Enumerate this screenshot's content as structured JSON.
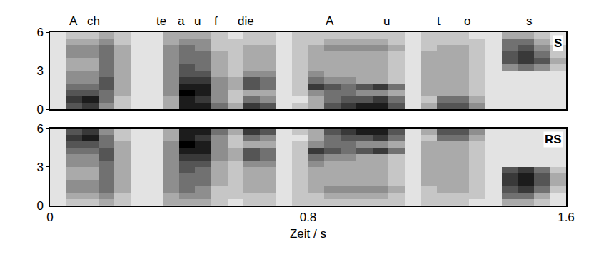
{
  "chart_data": [
    {
      "type": "heatmap",
      "panel": "S",
      "color": "gray",
      "tick_labels": "y",
      "x": [
        0.025,
        0.075,
        0.125,
        0.175,
        0.225,
        0.275,
        0.325,
        0.375,
        0.425,
        0.475,
        0.525,
        0.575,
        0.625,
        0.675,
        0.725,
        0.775,
        0.825,
        0.875,
        0.925,
        0.975,
        1.025,
        1.075,
        1.125,
        1.175,
        1.225,
        1.275,
        1.325,
        1.375,
        1.425,
        1.475,
        1.525,
        1.575
      ],
      "y": [
        0.25,
        0.75,
        1.25,
        1.75,
        2.25,
        2.75,
        3.25,
        3.75,
        4.25,
        4.75,
        5.25,
        5.75
      ],
      "cells": [
        [
          1,
          6,
          7,
          4,
          2,
          1,
          1,
          3,
          8,
          8,
          5,
          3,
          7,
          6,
          1,
          2,
          3,
          6,
          7,
          8,
          8,
          6,
          1,
          3,
          6,
          6,
          4,
          1,
          1,
          1,
          1,
          1
        ],
        [
          1,
          7,
          8,
          5,
          2,
          1,
          1,
          3,
          8,
          7,
          4,
          2,
          5,
          4,
          1,
          1,
          3,
          5,
          6,
          6,
          7,
          5,
          1,
          2,
          5,
          5,
          3,
          1,
          1,
          1,
          1,
          1
        ],
        [
          1,
          6,
          6,
          5,
          3,
          1,
          1,
          4,
          9,
          8,
          4,
          2,
          3,
          3,
          1,
          2,
          4,
          5,
          5,
          4,
          4,
          3,
          1,
          3,
          3,
          3,
          2,
          1,
          1,
          1,
          1,
          1
        ],
        [
          1,
          5,
          5,
          6,
          3,
          1,
          1,
          4,
          8,
          8,
          4,
          3,
          6,
          5,
          1,
          2,
          7,
          6,
          5,
          6,
          7,
          5,
          1,
          3,
          3,
          3,
          2,
          1,
          1,
          1,
          1,
          1
        ],
        [
          1,
          4,
          4,
          6,
          3,
          1,
          1,
          4,
          7,
          7,
          4,
          3,
          6,
          5,
          1,
          2,
          5,
          4,
          4,
          3,
          3,
          2,
          1,
          3,
          3,
          3,
          2,
          1,
          1,
          1,
          1,
          1
        ],
        [
          1,
          4,
          4,
          5,
          3,
          1,
          1,
          4,
          6,
          6,
          3,
          2,
          4,
          4,
          1,
          2,
          4,
          3,
          3,
          3,
          3,
          2,
          1,
          3,
          3,
          3,
          2,
          1,
          1,
          1,
          1,
          1
        ],
        [
          1,
          3,
          3,
          5,
          3,
          1,
          1,
          4,
          6,
          5,
          3,
          2,
          3,
          3,
          1,
          2,
          3,
          3,
          3,
          3,
          3,
          2,
          1,
          3,
          3,
          3,
          2,
          1,
          4,
          5,
          4,
          2
        ],
        [
          1,
          3,
          3,
          5,
          3,
          1,
          1,
          4,
          5,
          5,
          3,
          2,
          3,
          3,
          1,
          2,
          3,
          3,
          3,
          3,
          3,
          2,
          1,
          3,
          3,
          3,
          2,
          1,
          6,
          7,
          6,
          3
        ],
        [
          1,
          4,
          4,
          5,
          3,
          1,
          1,
          4,
          5,
          5,
          3,
          2,
          3,
          3,
          1,
          2,
          3,
          3,
          3,
          3,
          3,
          2,
          1,
          3,
          3,
          3,
          2,
          1,
          6,
          7,
          5,
          2
        ],
        [
          1,
          4,
          4,
          5,
          3,
          1,
          1,
          4,
          5,
          4,
          2,
          2,
          3,
          3,
          1,
          2,
          3,
          4,
          4,
          4,
          4,
          3,
          1,
          2,
          3,
          3,
          2,
          1,
          5,
          6,
          4,
          2
        ],
        [
          1,
          3,
          3,
          4,
          2,
          1,
          1,
          3,
          4,
          4,
          2,
          2,
          2,
          2,
          1,
          2,
          2,
          3,
          3,
          3,
          3,
          2,
          1,
          2,
          2,
          2,
          2,
          1,
          5,
          5,
          3,
          1
        ],
        [
          1,
          2,
          2,
          3,
          2,
          1,
          1,
          3,
          3,
          3,
          2,
          1,
          2,
          2,
          1,
          2,
          2,
          2,
          2,
          2,
          2,
          2,
          1,
          2,
          2,
          2,
          1,
          1,
          3,
          3,
          2,
          1
        ]
      ],
      "zlim": [
        0,
        9
      ],
      "xlim": [
        0,
        1.6
      ],
      "xticks": [
        0,
        0.8,
        1.6
      ],
      "ylim": [
        0,
        6
      ],
      "yticks": [
        0,
        3,
        6
      ],
      "annotations": [
        {
          "x": 0.073,
          "text": "A"
        },
        {
          "x": 0.135,
          "text": "ch"
        },
        {
          "x": 0.345,
          "text": "te"
        },
        {
          "x": 0.407,
          "text": "a"
        },
        {
          "x": 0.458,
          "text": "u"
        },
        {
          "x": 0.515,
          "text": "f"
        },
        {
          "x": 0.608,
          "text": "die"
        },
        {
          "x": 0.867,
          "text": "A"
        },
        {
          "x": 1.044,
          "text": "u"
        },
        {
          "x": 1.206,
          "text": "t"
        },
        {
          "x": 1.294,
          "text": "o"
        },
        {
          "x": 1.487,
          "text": "s"
        }
      ]
    },
    {
      "type": "heatmap",
      "panel": "RS",
      "color": "gray",
      "x_label": "Zeit / s",
      "x": [
        0.025,
        0.075,
        0.125,
        0.175,
        0.225,
        0.275,
        0.325,
        0.375,
        0.425,
        0.475,
        0.525,
        0.575,
        0.625,
        0.675,
        0.725,
        0.775,
        0.825,
        0.875,
        0.925,
        0.975,
        1.025,
        1.075,
        1.125,
        1.175,
        1.225,
        1.275,
        1.325,
        1.375,
        1.425,
        1.475,
        1.525,
        1.575
      ],
      "y": [
        0.25,
        0.75,
        1.25,
        1.75,
        2.25,
        2.75,
        3.25,
        3.75,
        4.25,
        4.75,
        5.25,
        5.75
      ],
      "cells": [
        [
          1,
          2,
          2,
          3,
          2,
          1,
          1,
          3,
          3,
          3,
          2,
          1,
          2,
          2,
          1,
          2,
          2,
          2,
          2,
          2,
          2,
          2,
          1,
          2,
          2,
          2,
          1,
          1,
          3,
          3,
          2,
          1
        ],
        [
          1,
          3,
          3,
          4,
          2,
          1,
          1,
          3,
          4,
          4,
          2,
          2,
          2,
          2,
          1,
          2,
          2,
          3,
          3,
          3,
          3,
          2,
          1,
          2,
          2,
          2,
          2,
          1,
          5,
          5,
          3,
          1
        ],
        [
          1,
          4,
          4,
          5,
          3,
          1,
          1,
          4,
          5,
          4,
          2,
          2,
          3,
          3,
          1,
          2,
          3,
          4,
          4,
          4,
          4,
          3,
          1,
          2,
          3,
          3,
          2,
          1,
          6,
          7,
          5,
          2
        ],
        [
          1,
          4,
          4,
          5,
          3,
          1,
          1,
          4,
          5,
          5,
          3,
          2,
          3,
          3,
          1,
          2,
          3,
          3,
          3,
          3,
          3,
          2,
          1,
          3,
          3,
          3,
          2,
          1,
          7,
          8,
          6,
          3
        ],
        [
          1,
          3,
          3,
          5,
          3,
          1,
          1,
          4,
          5,
          5,
          3,
          2,
          3,
          3,
          1,
          2,
          3,
          3,
          3,
          3,
          3,
          2,
          1,
          3,
          3,
          3,
          2,
          1,
          7,
          8,
          6,
          3
        ],
        [
          1,
          3,
          3,
          5,
          3,
          1,
          1,
          4,
          6,
          5,
          3,
          2,
          3,
          3,
          1,
          2,
          3,
          3,
          3,
          3,
          3,
          2,
          1,
          3,
          3,
          3,
          2,
          1,
          6,
          7,
          5,
          2
        ],
        [
          1,
          4,
          4,
          5,
          3,
          1,
          1,
          4,
          6,
          6,
          3,
          2,
          4,
          4,
          1,
          2,
          4,
          3,
          3,
          3,
          3,
          2,
          1,
          3,
          3,
          3,
          2,
          1,
          1,
          1,
          1,
          1
        ],
        [
          1,
          4,
          4,
          6,
          3,
          1,
          1,
          4,
          7,
          7,
          4,
          3,
          6,
          5,
          1,
          2,
          5,
          4,
          4,
          3,
          3,
          2,
          1,
          3,
          3,
          3,
          2,
          1,
          1,
          1,
          1,
          1
        ],
        [
          1,
          5,
          5,
          6,
          3,
          1,
          1,
          4,
          8,
          8,
          4,
          3,
          6,
          5,
          1,
          2,
          7,
          6,
          5,
          6,
          7,
          5,
          1,
          3,
          3,
          3,
          2,
          1,
          1,
          1,
          1,
          1
        ],
        [
          1,
          6,
          6,
          5,
          3,
          1,
          1,
          4,
          9,
          8,
          4,
          2,
          3,
          3,
          1,
          2,
          4,
          5,
          5,
          4,
          4,
          3,
          1,
          3,
          3,
          3,
          2,
          1,
          1,
          1,
          1,
          1
        ],
        [
          1,
          7,
          8,
          5,
          2,
          1,
          1,
          3,
          8,
          7,
          4,
          2,
          5,
          4,
          1,
          1,
          3,
          5,
          6,
          6,
          7,
          5,
          1,
          2,
          5,
          5,
          3,
          1,
          1,
          1,
          1,
          1
        ],
        [
          1,
          6,
          7,
          4,
          2,
          1,
          1,
          3,
          8,
          8,
          5,
          3,
          7,
          6,
          1,
          2,
          3,
          6,
          7,
          8,
          8,
          6,
          1,
          3,
          6,
          6,
          4,
          1,
          1,
          1,
          1,
          1
        ]
      ],
      "zlim": [
        0,
        9
      ],
      "xlim": [
        0,
        1.6
      ],
      "xticks": [
        0,
        0.8,
        1.6
      ],
      "ylim": [
        0,
        6
      ],
      "yticks": [
        0,
        3,
        6
      ]
    }
  ]
}
